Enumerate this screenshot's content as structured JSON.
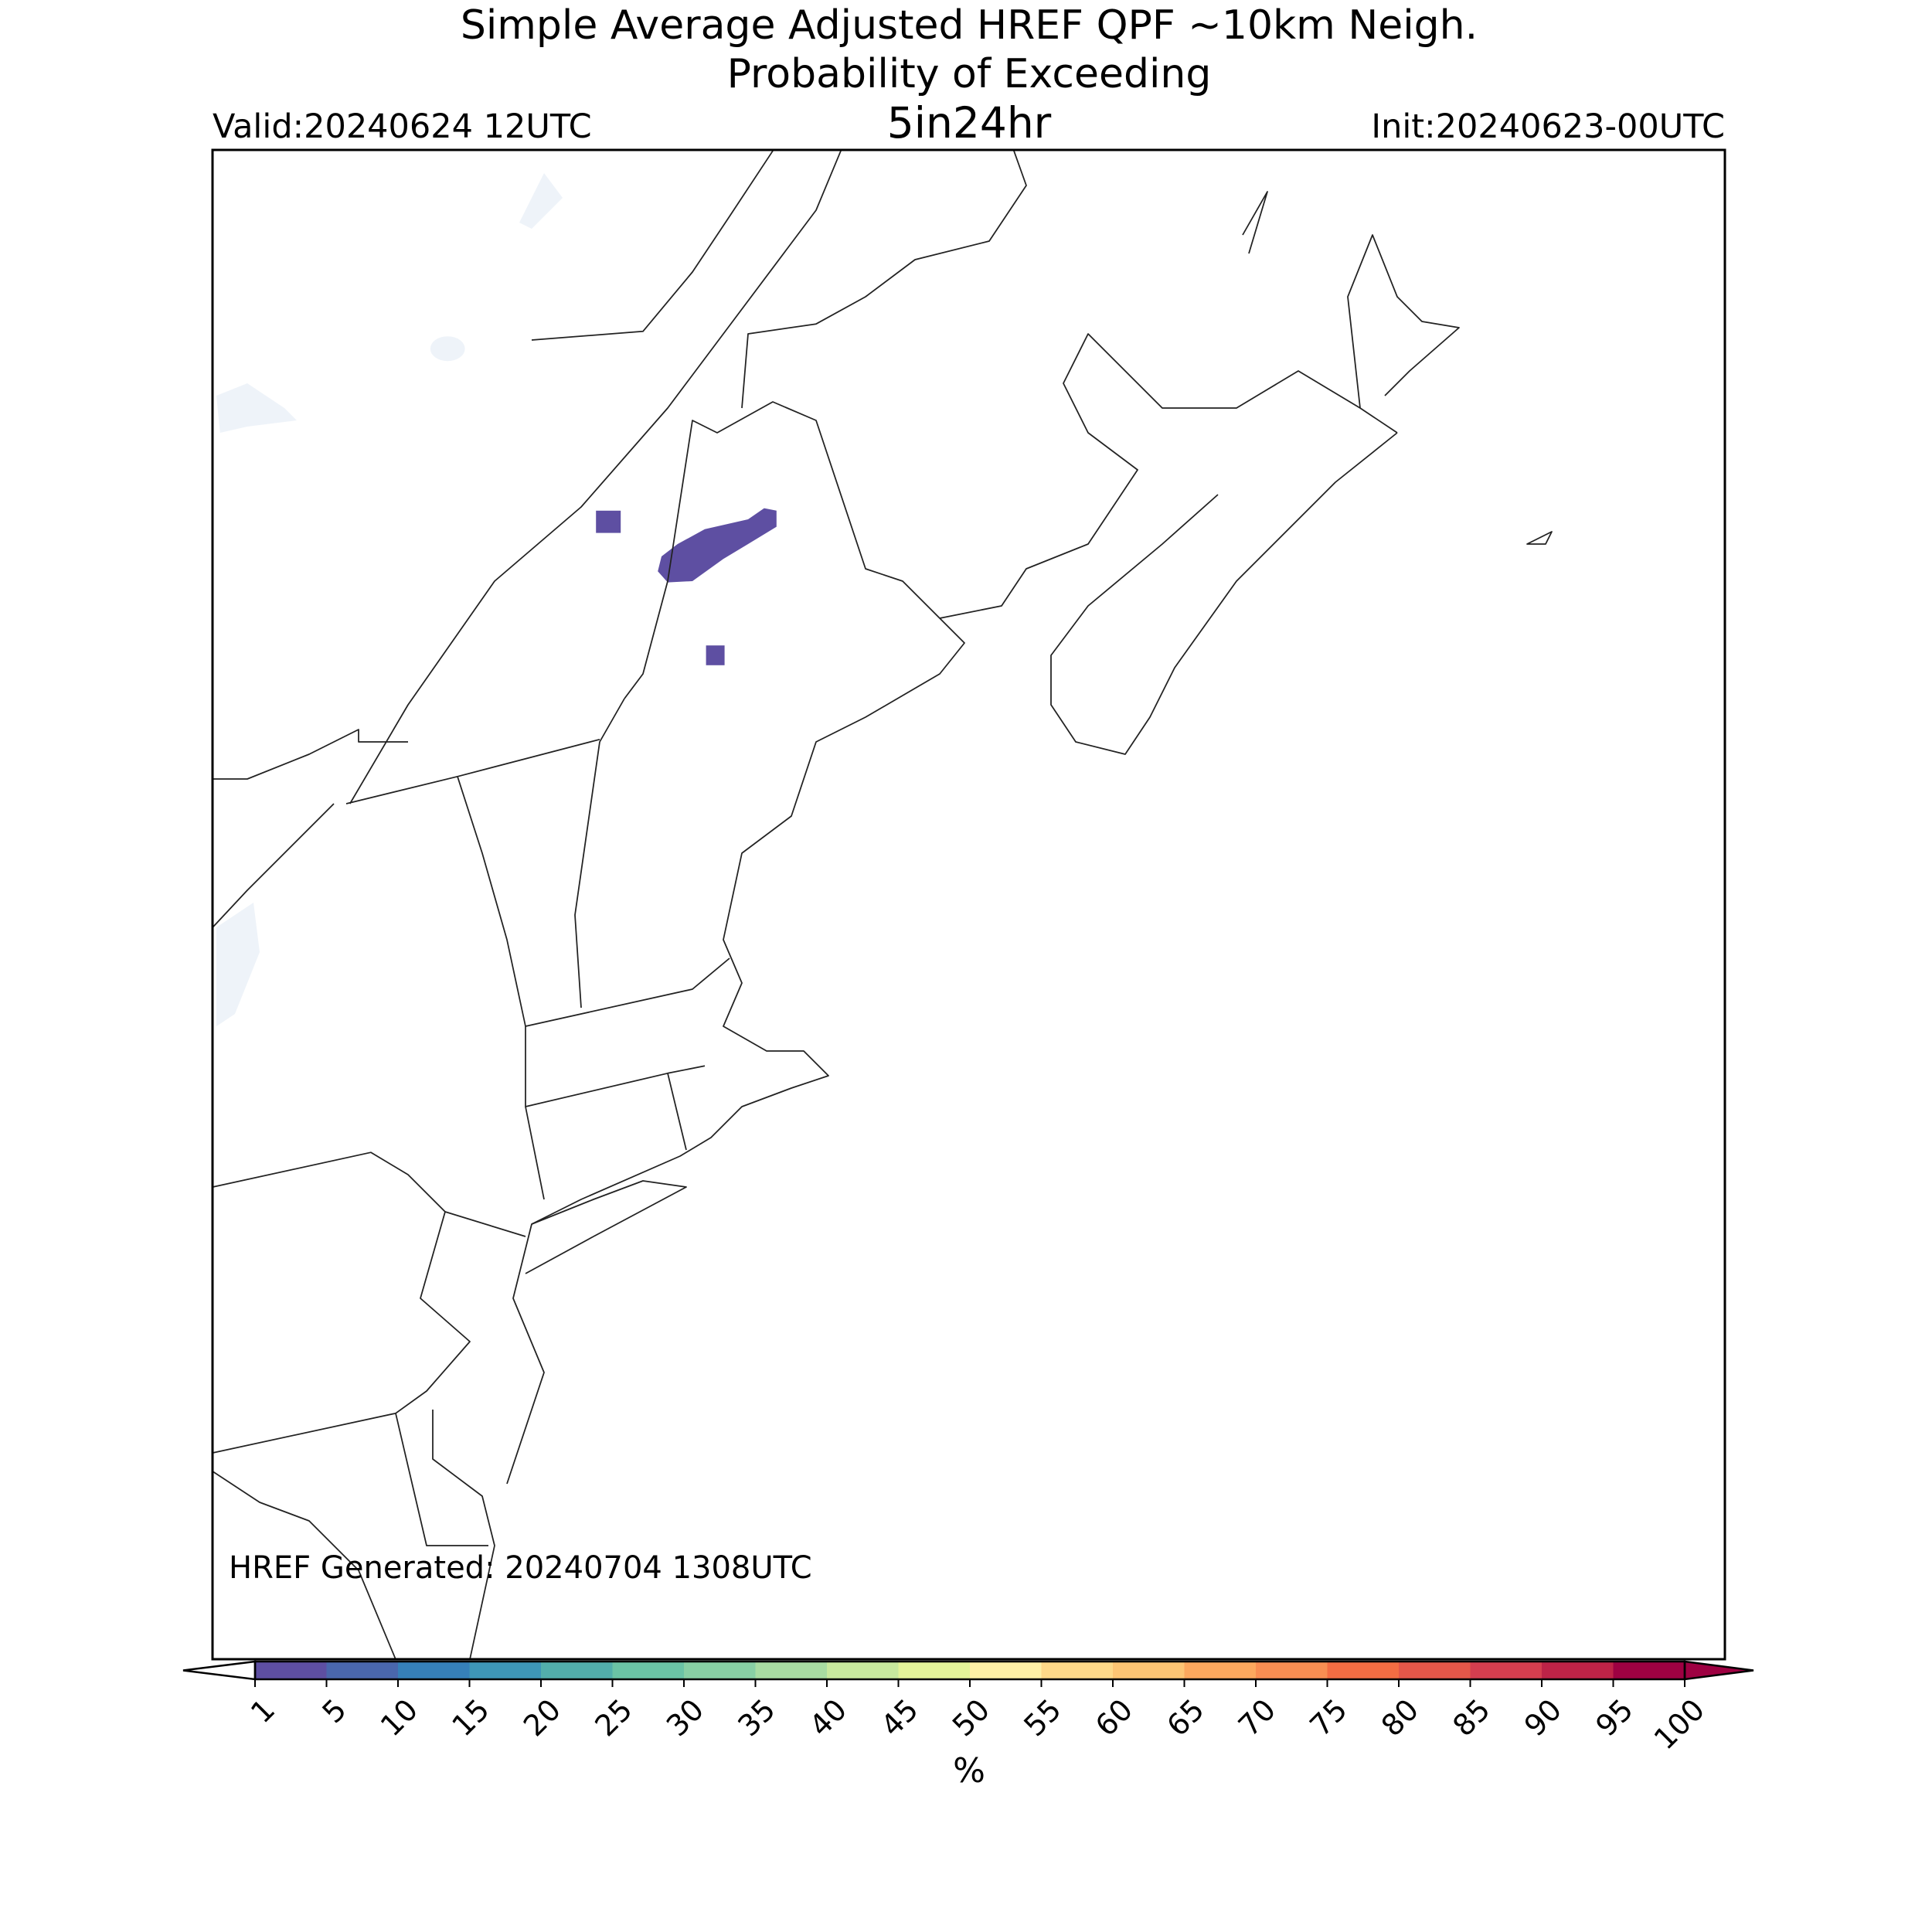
{
  "header": {
    "title_lines": [
      "Simple Average Adjusted HREF QPF ~10km Neigh.",
      "Probability of Exceeding"
    ],
    "valid": "Valid:20240624 12UTC",
    "threshold": "5in24hr",
    "init": "Init:20240623-00UTC"
  },
  "footer_note": "HREF Generated: 20240704 1308UTC",
  "colorbar": {
    "ticks": [
      1,
      5,
      10,
      15,
      20,
      25,
      30,
      35,
      40,
      45,
      50,
      55,
      60,
      65,
      70,
      75,
      80,
      85,
      90,
      95,
      100
    ],
    "colors": [
      "#5e4fa2",
      "#4a67ad",
      "#3680b9",
      "#3e96b7",
      "#52aeab",
      "#6bc3a5",
      "#88cfa4",
      "#a8dca2",
      "#c8e99e",
      "#e3f499",
      "#fef0a6",
      "#fed989",
      "#fdc574",
      "#fca85e",
      "#f98e52",
      "#f46d43",
      "#e55749",
      "#d53e4f",
      "#be2347",
      "#9e0142"
    ],
    "under_color": "#ffffff",
    "over_color": "#9e0142",
    "label": "%"
  }
}
